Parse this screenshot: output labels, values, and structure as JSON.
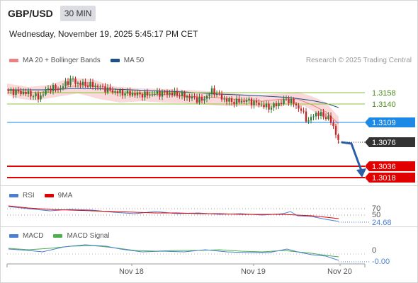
{
  "header": {
    "symbol": "GBP/USD",
    "timeframe": "30 MIN",
    "datetime": "Wednesday, November 19, 2025 5:45:17 PM CET"
  },
  "main_legend": {
    "items": [
      {
        "label": "MA 20 + Bollinger Bands",
        "color": "#f08080"
      },
      {
        "label": "MA 50",
        "color": "#1f4e8c"
      }
    ],
    "credit": "Research © 2025 Trading Central"
  },
  "price_levels": [
    {
      "value": "1.3158",
      "kind": "resistance-line",
      "color": "#8dc63f"
    },
    {
      "value": "1.3140",
      "kind": "resistance-line",
      "color": "#8dc63f"
    },
    {
      "value": "1.3109",
      "kind": "pivot",
      "color": "#1e88e5"
    },
    {
      "value": "1.3076",
      "kind": "last-price",
      "color": "#333333"
    },
    {
      "value": "1.3036",
      "kind": "target",
      "color": "#e00000"
    },
    {
      "value": "1.3018",
      "kind": "target",
      "color": "#e00000"
    }
  ],
  "rsi_panel": {
    "legend": [
      {
        "label": "RSI",
        "color": "#4a7fd4"
      },
      {
        "label": "9MA",
        "color": "#e00000"
      }
    ],
    "levels": [
      "70",
      "50"
    ],
    "value": "24.68"
  },
  "macd_panel": {
    "legend": [
      {
        "label": "MACD",
        "color": "#4a7fd4"
      },
      {
        "label": "MACD Signal",
        "color": "#4caf50"
      }
    ],
    "zero_label": "0",
    "value": "-0.00"
  },
  "x_axis": {
    "labels": [
      "Nov 18",
      "Nov 19",
      "Nov 20"
    ]
  },
  "colors": {
    "up_candle": "#2e7d32",
    "down_candle": "#c62828",
    "band_fill": "#f7c9c9",
    "forecast_arrow": "#2a5ea8"
  }
}
